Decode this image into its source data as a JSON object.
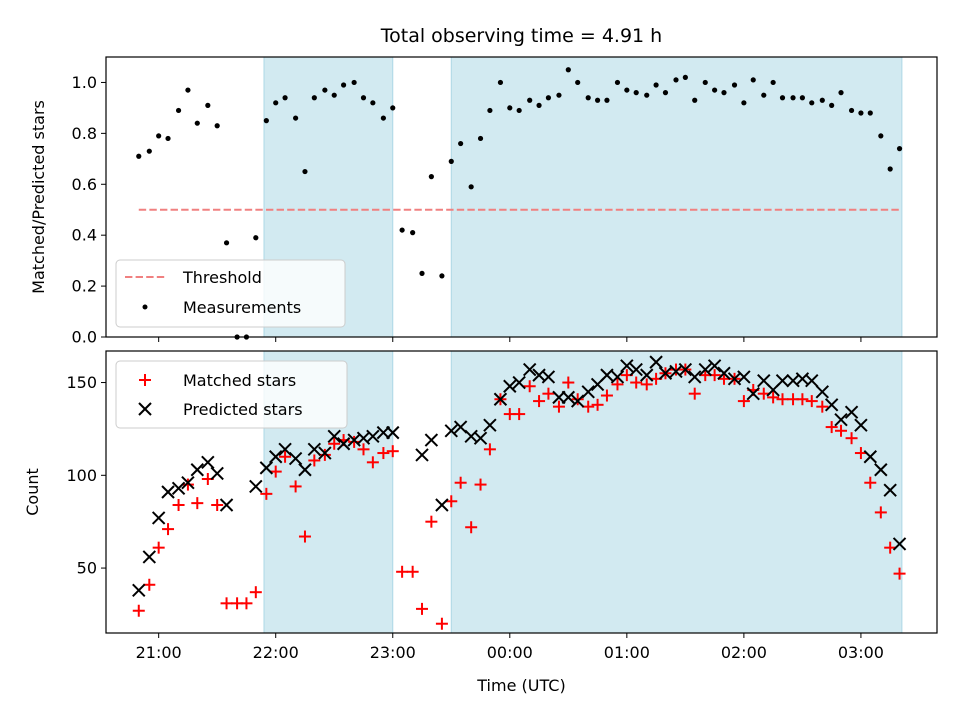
{
  "chart_data": {
    "title": "Total observing time = 4.91 h",
    "xlabel": "Time (UTC)",
    "x_tick_labels": [
      "21:00",
      "22:00",
      "23:00",
      "00:00",
      "01:00",
      "02:00",
      "03:00"
    ],
    "x_ticks_hours": [
      21,
      22,
      23,
      24,
      25,
      26,
      27
    ],
    "xlim_hours": [
      20.55,
      27.65
    ],
    "shaded_intervals_hours": [
      [
        21.9,
        23.0
      ],
      [
        23.5,
        27.35
      ]
    ],
    "shade_color": "#add8e6",
    "top": {
      "type": "scatter",
      "ylabel": "Matched/Predicted stars",
      "ylim": [
        0,
        1.1
      ],
      "y_tick_labels": [
        "0.0",
        "0.2",
        "0.4",
        "0.6",
        "0.8",
        "1.0"
      ],
      "y_ticks": [
        0,
        0.2,
        0.4,
        0.6,
        0.8,
        1.0
      ],
      "threshold": {
        "name": "Threshold",
        "value": 0.5,
        "x_range_hours": [
          20.83,
          27.35
        ],
        "color": "#f08080"
      },
      "measurements": {
        "name": "Measurements",
        "color": "#000000",
        "x_hours": [
          20.83,
          20.92,
          21.0,
          21.08,
          21.17,
          21.25,
          21.33,
          21.42,
          21.5,
          21.58,
          21.67,
          21.75,
          21.83,
          21.92,
          22.0,
          22.08,
          22.17,
          22.25,
          22.33,
          22.42,
          22.5,
          22.58,
          22.67,
          22.75,
          22.83,
          22.92,
          23.0,
          23.08,
          23.17,
          23.25,
          23.33,
          23.42,
          23.5,
          23.58,
          23.67,
          23.75,
          23.83,
          23.92,
          24.0,
          24.08,
          24.17,
          24.25,
          24.33,
          24.42,
          24.5,
          24.58,
          24.67,
          24.75,
          24.83,
          24.92,
          25.0,
          25.08,
          25.17,
          25.25,
          25.33,
          25.42,
          25.5,
          25.58,
          25.67,
          25.75,
          25.83,
          25.92,
          26.0,
          26.08,
          26.17,
          26.25,
          26.33,
          26.42,
          26.5,
          26.58,
          26.67,
          26.75,
          26.83,
          26.92,
          27.0,
          27.08,
          27.17,
          27.25,
          27.33
        ],
        "y": [
          0.71,
          0.73,
          0.79,
          0.78,
          0.89,
          0.97,
          0.84,
          0.91,
          0.83,
          0.37,
          0.0,
          0.0,
          0.39,
          0.85,
          0.92,
          0.94,
          0.86,
          0.65,
          0.94,
          0.97,
          0.95,
          0.99,
          1.0,
          0.94,
          0.92,
          0.86,
          0.9,
          0.42,
          0.41,
          0.25,
          0.63,
          0.24,
          0.69,
          0.76,
          0.59,
          0.78,
          0.89,
          1.0,
          0.9,
          0.89,
          0.93,
          0.91,
          0.94,
          0.95,
          1.05,
          1.0,
          0.94,
          0.93,
          0.93,
          1.0,
          0.97,
          0.96,
          0.95,
          0.99,
          0.96,
          1.01,
          1.02,
          0.93,
          1.0,
          0.97,
          0.96,
          0.99,
          0.92,
          1.01,
          0.95,
          1.0,
          0.94,
          0.94,
          0.94,
          0.92,
          0.93,
          0.91,
          0.96,
          0.89,
          0.88,
          0.88,
          0.79,
          0.66,
          0.74
        ]
      }
    },
    "bottom": {
      "type": "scatter",
      "ylabel": "Count",
      "ylim": [
        15,
        167
      ],
      "y_tick_labels": [
        "50",
        "100",
        "150"
      ],
      "y_ticks": [
        50,
        100,
        150
      ],
      "series": [
        {
          "name": "Matched stars",
          "marker": "plus",
          "color": "#ff0000",
          "x_hours": [
            20.83,
            20.92,
            21.0,
            21.08,
            21.17,
            21.25,
            21.33,
            21.42,
            21.5,
            21.58,
            21.67,
            21.75,
            21.83,
            21.92,
            22.0,
            22.08,
            22.17,
            22.25,
            22.33,
            22.42,
            22.5,
            22.58,
            22.67,
            22.75,
            22.83,
            22.92,
            23.0,
            23.08,
            23.17,
            23.25,
            23.33,
            23.42,
            23.5,
            23.58,
            23.67,
            23.75,
            23.83,
            23.92,
            24.0,
            24.08,
            24.17,
            24.25,
            24.33,
            24.42,
            24.5,
            24.58,
            24.67,
            24.75,
            24.83,
            24.92,
            25.0,
            25.08,
            25.17,
            25.25,
            25.33,
            25.42,
            25.5,
            25.58,
            25.67,
            25.75,
            25.83,
            25.92,
            26.0,
            26.08,
            26.17,
            26.25,
            26.33,
            26.42,
            26.5,
            26.58,
            26.67,
            26.75,
            26.83,
            26.92,
            27.0,
            27.08,
            27.17,
            27.25,
            27.33
          ],
          "y": [
            27,
            41,
            61,
            71,
            84,
            95,
            85,
            98,
            84,
            31,
            31,
            31,
            37,
            90,
            102,
            110,
            94,
            67,
            108,
            111,
            117,
            119,
            118,
            114,
            107,
            112,
            113,
            48,
            48,
            28,
            75,
            20,
            86,
            96,
            72,
            95,
            114,
            141,
            133,
            133,
            148,
            140,
            144,
            137,
            150,
            141,
            137,
            138,
            143,
            149,
            154,
            150,
            149,
            152,
            155,
            157,
            157,
            144,
            154,
            154,
            152,
            152,
            140,
            146,
            144,
            142,
            141,
            141,
            141,
            140,
            137,
            126,
            124,
            120,
            112,
            96,
            80,
            61,
            47
          ]
        },
        {
          "name": "Predicted stars",
          "marker": "cross",
          "color": "#000000",
          "x_hours": [
            20.83,
            20.92,
            21.0,
            21.08,
            21.17,
            21.25,
            21.33,
            21.42,
            21.5,
            21.58,
            21.83,
            21.92,
            22.0,
            22.08,
            22.17,
            22.25,
            22.33,
            22.42,
            22.5,
            22.58,
            22.67,
            22.75,
            22.83,
            22.92,
            23.0,
            23.25,
            23.33,
            23.42,
            23.5,
            23.58,
            23.67,
            23.75,
            23.83,
            23.92,
            24.0,
            24.08,
            24.17,
            24.25,
            24.33,
            24.42,
            24.5,
            24.58,
            24.67,
            24.75,
            24.83,
            24.92,
            25.0,
            25.08,
            25.17,
            25.25,
            25.33,
            25.42,
            25.5,
            25.58,
            25.67,
            25.75,
            25.83,
            25.92,
            26.0,
            26.08,
            26.17,
            26.25,
            26.33,
            26.42,
            26.5,
            26.58,
            26.67,
            26.75,
            26.83,
            26.92,
            27.0,
            27.08,
            27.17,
            27.25,
            27.33
          ],
          "y": [
            38,
            56,
            77,
            91,
            93,
            96,
            103,
            107,
            101,
            84,
            94,
            104,
            110,
            114,
            109,
            103,
            114,
            112,
            121,
            117,
            119,
            120,
            121,
            123,
            123,
            111,
            119,
            84,
            124,
            126,
            121,
            120,
            127,
            141,
            148,
            150,
            157,
            154,
            153,
            142,
            142,
            140,
            145,
            149,
            154,
            153,
            159,
            157,
            154,
            161,
            155,
            156,
            157,
            153,
            157,
            159,
            155,
            152,
            153,
            144,
            151,
            146,
            151,
            151,
            152,
            151,
            145,
            138,
            130,
            134,
            127,
            110,
            103,
            92,
            63
          ]
        }
      ]
    }
  }
}
